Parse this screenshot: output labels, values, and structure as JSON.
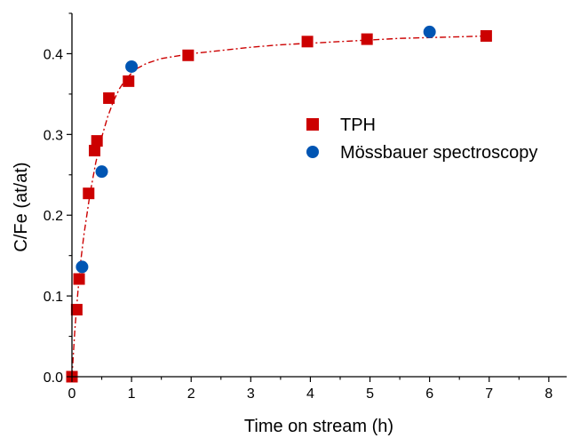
{
  "chart_data": {
    "type": "scatter",
    "xlabel": "Time on stream (h)",
    "ylabel": "C/Fe (at/at)",
    "xlim": [
      0,
      8.3
    ],
    "ylim": [
      0,
      0.45
    ],
    "xticks": [
      0,
      1,
      2,
      3,
      4,
      5,
      6,
      7,
      8
    ],
    "xtick_labels": [
      "0",
      "1",
      "2",
      "3",
      "4",
      "5",
      "6",
      "7",
      "8"
    ],
    "yticks": [
      0.0,
      0.1,
      0.2,
      0.3,
      0.4
    ],
    "ytick_labels": [
      "0.0",
      "0.1",
      "0.2",
      "0.3",
      "0.4"
    ],
    "grid": false,
    "legend_position": "center-right",
    "series": [
      {
        "name": "TPH",
        "marker": "square",
        "color": "#cc0000",
        "x": [
          0.0,
          0.08,
          0.12,
          0.28,
          0.38,
          0.42,
          0.62,
          0.95,
          1.95,
          3.95,
          4.95,
          6.95
        ],
        "y": [
          0.0,
          0.083,
          0.121,
          0.227,
          0.28,
          0.292,
          0.345,
          0.366,
          0.398,
          0.415,
          0.418,
          0.422
        ]
      },
      {
        "name": "Mössbauer spectroscopy",
        "marker": "circle",
        "color": "#0055b3",
        "x": [
          0.17,
          0.5,
          1.0,
          6.0
        ],
        "y": [
          0.136,
          0.254,
          0.384,
          0.427
        ]
      },
      {
        "fit": true,
        "style": "dash-dot",
        "color": "#cc0000",
        "x": [
          0,
          0.05,
          0.1,
          0.15,
          0.2,
          0.3,
          0.4,
          0.5,
          0.6,
          0.7,
          0.8,
          0.9,
          1.0,
          1.1,
          1.25,
          1.5,
          1.75,
          2.0,
          2.5,
          3.0,
          3.5,
          4.0,
          4.5,
          5.0,
          5.5,
          6.0,
          6.5,
          7.0
        ],
        "y": [
          0.0,
          0.06,
          0.105,
          0.145,
          0.175,
          0.225,
          0.265,
          0.297,
          0.322,
          0.342,
          0.357,
          0.368,
          0.376,
          0.382,
          0.388,
          0.394,
          0.397,
          0.4,
          0.404,
          0.408,
          0.411,
          0.413,
          0.415,
          0.417,
          0.419,
          0.42,
          0.421,
          0.422
        ]
      }
    ]
  }
}
